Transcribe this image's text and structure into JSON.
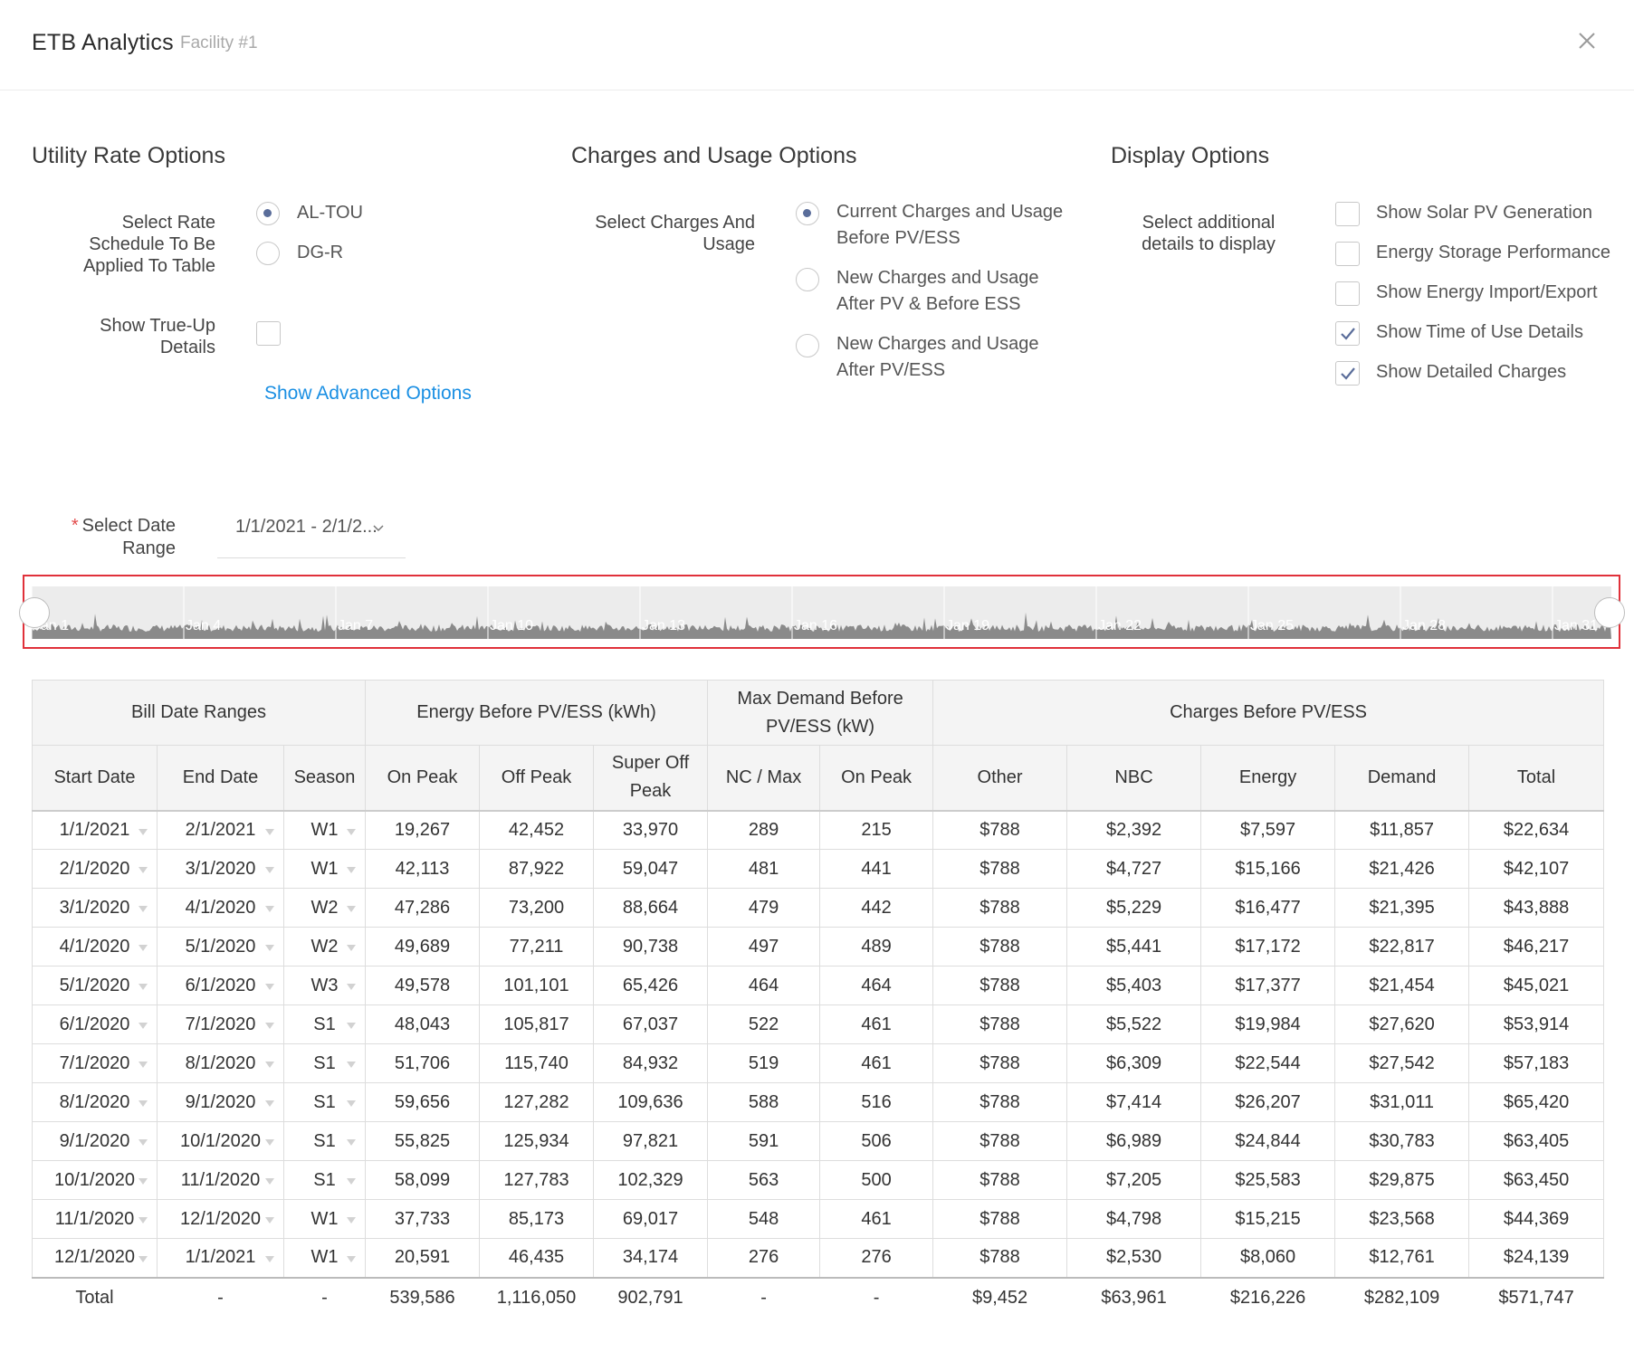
{
  "header": {
    "title": "ETB Analytics",
    "subtitle": "Facility #1",
    "close_icon": "close-icon"
  },
  "utility": {
    "title": "Utility Rate Options",
    "rate_label": "Select Rate Schedule To Be Applied To Table",
    "rates": [
      {
        "label": "AL-TOU",
        "selected": true
      },
      {
        "label": "DG-R",
        "selected": false
      }
    ],
    "trueup_label": "Show True-Up Details",
    "trueup_checked": false,
    "advanced_link": "Show Advanced Options"
  },
  "charges": {
    "title": "Charges and Usage Options",
    "select_label": "Select Charges And Usage",
    "options": [
      {
        "line1": "Current Charges and Usage",
        "line2": "Before PV/ESS",
        "selected": true
      },
      {
        "line1": "New Charges and Usage",
        "line2": "After PV & Before ESS",
        "selected": false
      },
      {
        "line1": "New Charges and Usage",
        "line2": "After PV/ESS",
        "selected": false
      }
    ]
  },
  "display": {
    "title": "Display Options",
    "select_label": "Select additional details to display",
    "options": [
      {
        "label": "Show Solar PV Generation",
        "checked": false
      },
      {
        "label": "Energy Storage Performance",
        "checked": false
      },
      {
        "label": "Show Energy Import/Export",
        "checked": false
      },
      {
        "label": "Show Time of Use Details",
        "checked": true
      },
      {
        "label": "Show Detailed Charges",
        "checked": true
      }
    ]
  },
  "date_range": {
    "required_mark": "*",
    "label": "Select Date Range",
    "value": "1/1/2021 - 2/1/2..."
  },
  "timeline": {
    "labels": [
      "Jan 1",
      "Jan 4",
      "Jan 7",
      "Jan 10",
      "Jan 13",
      "Jan 16",
      "Jan 19",
      "Jan 22",
      "Jan 25",
      "Jan 28",
      "Jan 31"
    ],
    "fill_color": "#8a8a8a",
    "background_color": "#ececec",
    "highlight_color": "#e0313a"
  },
  "table": {
    "group_headers": [
      "Bill Date Ranges",
      "Energy Before PV/ESS (kWh)",
      "Max Demand Before PV/ESS (kW)",
      "Charges Before PV/ESS"
    ],
    "columns": [
      "Start Date",
      "End Date",
      "Season",
      "On Peak",
      "Off Peak",
      "Super Off Peak",
      "NC / Max",
      "On Peak",
      "Other",
      "NBC",
      "Energy",
      "Demand",
      "Total"
    ],
    "rows": [
      [
        "1/1/2021",
        "2/1/2021",
        "W1",
        "19,267",
        "42,452",
        "33,970",
        "289",
        "215",
        "$788",
        "$2,392",
        "$7,597",
        "$11,857",
        "$22,634"
      ],
      [
        "2/1/2020",
        "3/1/2020",
        "W1",
        "42,113",
        "87,922",
        "59,047",
        "481",
        "441",
        "$788",
        "$4,727",
        "$15,166",
        "$21,426",
        "$42,107"
      ],
      [
        "3/1/2020",
        "4/1/2020",
        "W2",
        "47,286",
        "73,200",
        "88,664",
        "479",
        "442",
        "$788",
        "$5,229",
        "$16,477",
        "$21,395",
        "$43,888"
      ],
      [
        "4/1/2020",
        "5/1/2020",
        "W2",
        "49,689",
        "77,211",
        "90,738",
        "497",
        "489",
        "$788",
        "$5,441",
        "$17,172",
        "$22,817",
        "$46,217"
      ],
      [
        "5/1/2020",
        "6/1/2020",
        "W3",
        "49,578",
        "101,101",
        "65,426",
        "464",
        "464",
        "$788",
        "$5,403",
        "$17,377",
        "$21,454",
        "$45,021"
      ],
      [
        "6/1/2020",
        "7/1/2020",
        "S1",
        "48,043",
        "105,817",
        "67,037",
        "522",
        "461",
        "$788",
        "$5,522",
        "$19,984",
        "$27,620",
        "$53,914"
      ],
      [
        "7/1/2020",
        "8/1/2020",
        "S1",
        "51,706",
        "115,740",
        "84,932",
        "519",
        "461",
        "$788",
        "$6,309",
        "$22,544",
        "$27,542",
        "$57,183"
      ],
      [
        "8/1/2020",
        "9/1/2020",
        "S1",
        "59,656",
        "127,282",
        "109,636",
        "588",
        "516",
        "$788",
        "$7,414",
        "$26,207",
        "$31,011",
        "$65,420"
      ],
      [
        "9/1/2020",
        "10/1/2020",
        "S1",
        "55,825",
        "125,934",
        "97,821",
        "591",
        "506",
        "$788",
        "$6,989",
        "$24,844",
        "$30,783",
        "$63,405"
      ],
      [
        "10/1/2020",
        "11/1/2020",
        "S1",
        "58,099",
        "127,783",
        "102,329",
        "563",
        "500",
        "$788",
        "$7,205",
        "$25,583",
        "$29,875",
        "$63,450"
      ],
      [
        "11/1/2020",
        "12/1/2020",
        "W1",
        "37,733",
        "85,173",
        "69,017",
        "548",
        "461",
        "$788",
        "$4,798",
        "$15,215",
        "$23,568",
        "$44,369"
      ],
      [
        "12/1/2020",
        "1/1/2021",
        "W1",
        "20,591",
        "46,435",
        "34,174",
        "276",
        "276",
        "$788",
        "$2,530",
        "$8,060",
        "$12,761",
        "$24,139"
      ]
    ],
    "totals": [
      "Total",
      "-",
      "-",
      "539,586",
      "1,116,050",
      "902,791",
      "-",
      "-",
      "$9,452",
      "$63,961",
      "$216,226",
      "$282,109",
      "$571,747"
    ]
  }
}
